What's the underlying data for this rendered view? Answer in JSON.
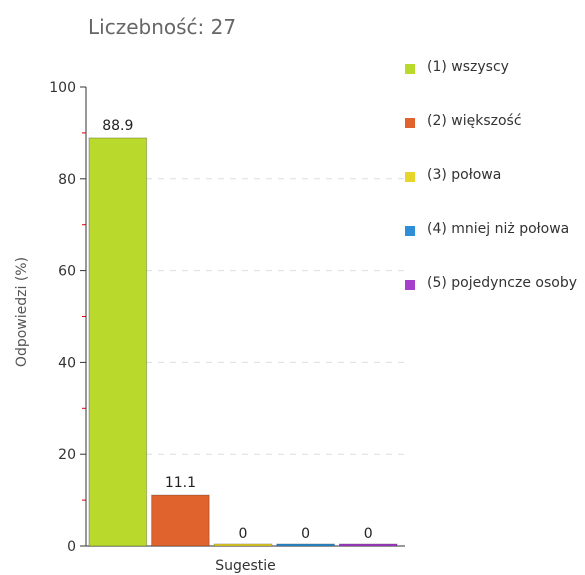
{
  "chart_data": {
    "type": "bar",
    "title": "Liczebność: 27",
    "ylabel": "Odpowiedzi (%)",
    "categories": [
      "Sugestie"
    ],
    "series": [
      {
        "name": "(1) wszyscy",
        "color": "#b9da2c",
        "values": [
          88.9
        ]
      },
      {
        "name": "(2) większość",
        "color": "#e0622d",
        "values": [
          11.1
        ]
      },
      {
        "name": "(3) połowa",
        "color": "#e8d52c",
        "values": [
          0
        ]
      },
      {
        "name": "(4) mniej niż połowa",
        "color": "#2e8fd6",
        "values": [
          0
        ]
      },
      {
        "name": "(5) pojedyncze osoby",
        "color": "#a63fcb",
        "values": [
          0
        ]
      }
    ],
    "ylim": [
      0,
      100
    ],
    "yticks": [
      0,
      20,
      40,
      60,
      80,
      100
    ],
    "yminorticks": [
      10,
      30,
      50,
      70,
      90
    ],
    "grid": true
  }
}
